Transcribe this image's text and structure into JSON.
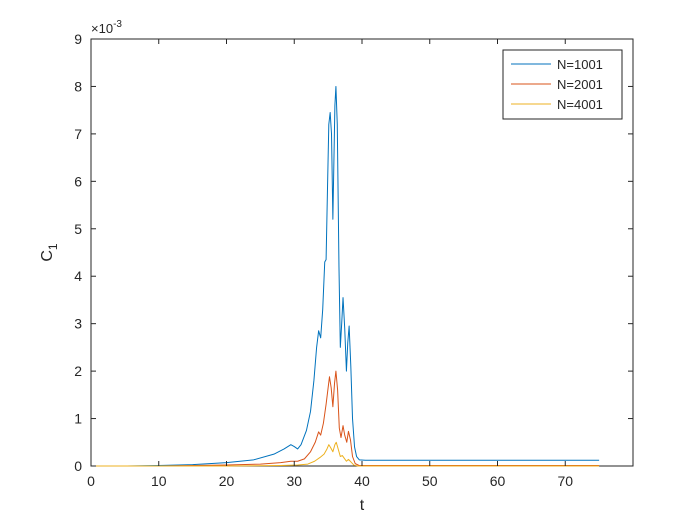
{
  "chart_data": {
    "type": "line",
    "xlabel": "t",
    "ylabel": "C",
    "ylabel_subscript": "1",
    "y_exponent_label": "×10",
    "y_exponent_power": "-3",
    "xlim": [
      0,
      80
    ],
    "ylim": [
      0,
      9
    ],
    "xticks": [
      0,
      10,
      20,
      30,
      40,
      50,
      60,
      70
    ],
    "yticks": [
      0,
      1,
      2,
      3,
      4,
      5,
      6,
      7,
      8,
      9
    ],
    "x_tick_labels": [
      "0",
      "10",
      "20",
      "30",
      "40",
      "50",
      "60",
      "70"
    ],
    "y_tick_labels": [
      "0",
      "1",
      "2",
      "3",
      "4",
      "5",
      "6",
      "7",
      "8",
      "9"
    ],
    "grid": false,
    "box": true,
    "legend_position": "top-right",
    "series": [
      {
        "name": "N=1001",
        "color": "#0072BD",
        "points": [
          [
            0,
            0.0
          ],
          [
            5,
            0.0
          ],
          [
            10,
            0.01
          ],
          [
            15,
            0.03
          ],
          [
            20,
            0.07
          ],
          [
            24,
            0.13
          ],
          [
            27,
            0.25
          ],
          [
            28.5,
            0.36
          ],
          [
            29.5,
            0.45
          ],
          [
            30,
            0.41
          ],
          [
            30.5,
            0.36
          ],
          [
            31,
            0.45
          ],
          [
            31.8,
            0.75
          ],
          [
            32.4,
            1.15
          ],
          [
            32.9,
            1.8
          ],
          [
            33.3,
            2.5
          ],
          [
            33.6,
            2.85
          ],
          [
            33.9,
            2.7
          ],
          [
            34.2,
            3.3
          ],
          [
            34.5,
            4.3
          ],
          [
            34.7,
            4.35
          ],
          [
            34.9,
            5.8
          ],
          [
            35.1,
            7.2
          ],
          [
            35.3,
            7.45
          ],
          [
            35.5,
            7.0
          ],
          [
            35.7,
            5.2
          ],
          [
            35.85,
            6.4
          ],
          [
            36.0,
            7.6
          ],
          [
            36.15,
            8.0
          ],
          [
            36.35,
            7.2
          ],
          [
            36.6,
            4.2
          ],
          [
            36.8,
            2.5
          ],
          [
            37.0,
            3.0
          ],
          [
            37.2,
            3.55
          ],
          [
            37.45,
            2.9
          ],
          [
            37.7,
            2.0
          ],
          [
            37.9,
            2.6
          ],
          [
            38.1,
            2.95
          ],
          [
            38.35,
            2.1
          ],
          [
            38.6,
            1.0
          ],
          [
            38.9,
            0.4
          ],
          [
            39.2,
            0.2
          ],
          [
            39.6,
            0.13
          ],
          [
            40.5,
            0.12
          ],
          [
            45,
            0.12
          ],
          [
            55,
            0.12
          ],
          [
            65,
            0.12
          ],
          [
            75,
            0.12
          ]
        ]
      },
      {
        "name": "N=2001",
        "color": "#D95319",
        "points": [
          [
            0,
            0.0
          ],
          [
            10,
            0.0
          ],
          [
            20,
            0.02
          ],
          [
            25,
            0.04
          ],
          [
            28,
            0.07
          ],
          [
            29.5,
            0.1
          ],
          [
            30.5,
            0.1
          ],
          [
            31.5,
            0.15
          ],
          [
            32.4,
            0.3
          ],
          [
            33.1,
            0.5
          ],
          [
            33.6,
            0.72
          ],
          [
            33.9,
            0.65
          ],
          [
            34.3,
            0.9
          ],
          [
            34.7,
            1.3
          ],
          [
            35.0,
            1.65
          ],
          [
            35.2,
            1.88
          ],
          [
            35.45,
            1.65
          ],
          [
            35.7,
            1.25
          ],
          [
            35.95,
            1.75
          ],
          [
            36.15,
            2.0
          ],
          [
            36.4,
            1.6
          ],
          [
            36.65,
            0.8
          ],
          [
            36.9,
            0.6
          ],
          [
            37.2,
            0.85
          ],
          [
            37.45,
            0.65
          ],
          [
            37.75,
            0.5
          ],
          [
            38.0,
            0.73
          ],
          [
            38.3,
            0.55
          ],
          [
            38.6,
            0.2
          ],
          [
            39.0,
            0.05
          ],
          [
            39.6,
            0.01
          ],
          [
            45,
            0.01
          ],
          [
            60,
            0.01
          ],
          [
            75,
            0.01
          ]
        ]
      },
      {
        "name": "N=4001",
        "color": "#EDB120",
        "points": [
          [
            0,
            0.0
          ],
          [
            20,
            0.0
          ],
          [
            28,
            0.01
          ],
          [
            30.5,
            0.02
          ],
          [
            32,
            0.04
          ],
          [
            33,
            0.1
          ],
          [
            33.8,
            0.18
          ],
          [
            34.4,
            0.25
          ],
          [
            34.8,
            0.35
          ],
          [
            35.1,
            0.45
          ],
          [
            35.4,
            0.38
          ],
          [
            35.7,
            0.3
          ],
          [
            36.0,
            0.45
          ],
          [
            36.2,
            0.5
          ],
          [
            36.5,
            0.35
          ],
          [
            36.8,
            0.2
          ],
          [
            37.1,
            0.22
          ],
          [
            37.4,
            0.16
          ],
          [
            37.7,
            0.1
          ],
          [
            38.0,
            0.14
          ],
          [
            38.4,
            0.08
          ],
          [
            38.8,
            0.02
          ],
          [
            39.4,
            0.0
          ],
          [
            50,
            0.0
          ],
          [
            75,
            0.0
          ]
        ]
      }
    ]
  }
}
